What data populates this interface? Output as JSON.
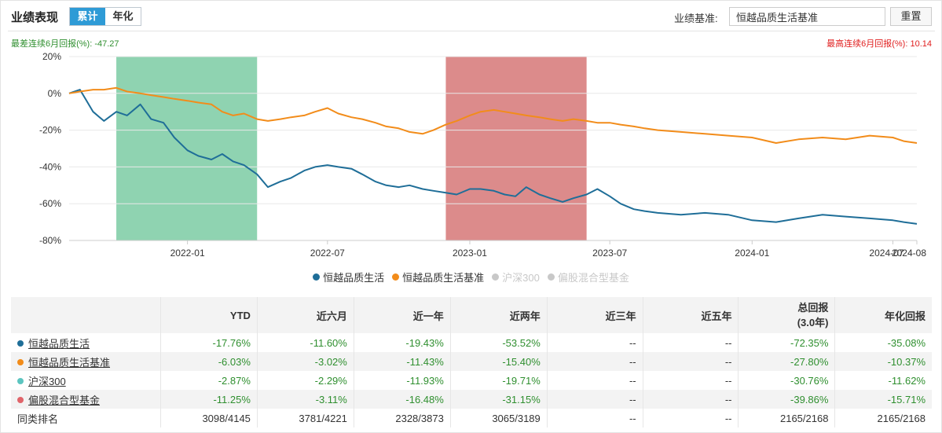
{
  "header": {
    "title": "业绩表现",
    "tabs": [
      {
        "label": "累计",
        "active": true
      },
      {
        "label": "年化",
        "active": false
      }
    ],
    "benchmark_label": "业绩基准:",
    "benchmark_value": "恒越品质生活基准",
    "reset_label": "重置"
  },
  "stats": {
    "worst_text": "最差连续6月回报(%): -47.27",
    "best_text": "最高连续6月回报(%): 10.14"
  },
  "colors": {
    "fund": "#1f6e98",
    "benchmark": "#f28c1a",
    "hs300": "#5cc5c0",
    "peer": "#e0646a",
    "worst_band": "#8fd3b1",
    "best_band": "#dc8b8b",
    "negative": "#2f8f2f",
    "positive": "#e02020"
  },
  "chart_data": {
    "type": "line",
    "x_axis": {
      "start": "2021-08",
      "end": "2024-08",
      "tick_labels": [
        "2022-01",
        "2022-07",
        "2023-01",
        "2023-07",
        "2024-01",
        "2024-07",
        "2024-08"
      ],
      "tick_dates": [
        "2022-01",
        "2022-07",
        "2023-01",
        "2023-07",
        "2024-01",
        "2024-07",
        "2024-08"
      ]
    },
    "y_axis": {
      "min": -80,
      "max": 20,
      "ticks": [
        20,
        0,
        -20,
        -40,
        -60,
        -80
      ],
      "tick_labels": [
        "20%",
        "0%",
        "-20%",
        "-40%",
        "-60%",
        "-80%"
      ]
    },
    "grid": true,
    "legend_position": "bottom",
    "bands": [
      {
        "kind": "worst-6-month",
        "start": "2021-10",
        "end": "2022-04",
        "color": "#8fd3b1"
      },
      {
        "kind": "best-6-month",
        "start": "2022-12",
        "end": "2023-06",
        "color": "#dc8b8b"
      }
    ],
    "series": [
      {
        "name": "恒越品质生活",
        "color": "#1f6e98",
        "visible": true,
        "x": [
          "2021-08",
          "2021-08-15",
          "2021-09",
          "2021-09-15",
          "2021-10",
          "2021-10-15",
          "2021-11",
          "2021-11-15",
          "2021-12",
          "2021-12-15",
          "2022-01",
          "2022-01-15",
          "2022-02",
          "2022-02-15",
          "2022-03",
          "2022-03-15",
          "2022-04",
          "2022-04-15",
          "2022-05",
          "2022-05-15",
          "2022-06",
          "2022-06-15",
          "2022-07",
          "2022-07-15",
          "2022-08",
          "2022-08-15",
          "2022-09",
          "2022-09-15",
          "2022-10",
          "2022-10-15",
          "2022-11",
          "2022-11-15",
          "2022-12",
          "2022-12-15",
          "2023-01",
          "2023-01-15",
          "2023-02",
          "2023-02-15",
          "2023-03",
          "2023-03-15",
          "2023-04",
          "2023-04-15",
          "2023-05",
          "2023-05-15",
          "2023-06",
          "2023-06-15",
          "2023-07",
          "2023-07-15",
          "2023-08",
          "2023-08-15",
          "2023-09",
          "2023-10",
          "2023-11",
          "2023-12",
          "2024-01",
          "2024-02",
          "2024-03",
          "2024-04",
          "2024-05",
          "2024-06",
          "2024-07",
          "2024-07-15",
          "2024-08"
        ],
        "values": [
          0,
          2,
          -10,
          -15,
          -10,
          -12,
          -6,
          -14,
          -16,
          -24,
          -31,
          -34,
          -36,
          -33,
          -37,
          -39,
          -44,
          -51,
          -48,
          -46,
          -42,
          -40,
          -39,
          -40,
          -41,
          -44,
          -48,
          -50,
          -51,
          -50,
          -52,
          -53,
          -54,
          -55,
          -52,
          -52,
          -53,
          -55,
          -56,
          -51,
          -55,
          -57,
          -59,
          -57,
          -55,
          -52,
          -56,
          -60,
          -63,
          -64,
          -65,
          -66,
          -65,
          -66,
          -69,
          -70,
          -68,
          -66,
          -67,
          -68,
          -69,
          -70,
          -71
        ]
      },
      {
        "name": "恒越品质生活基准",
        "color": "#f28c1a",
        "visible": true,
        "x": [
          "2021-08",
          "2021-08-15",
          "2021-09",
          "2021-09-15",
          "2021-10",
          "2021-10-15",
          "2021-11",
          "2021-11-15",
          "2021-12",
          "2021-12-15",
          "2022-01",
          "2022-01-15",
          "2022-02",
          "2022-02-15",
          "2022-03",
          "2022-03-15",
          "2022-04",
          "2022-04-15",
          "2022-05",
          "2022-05-15",
          "2022-06",
          "2022-06-15",
          "2022-07",
          "2022-07-15",
          "2022-08",
          "2022-08-15",
          "2022-09",
          "2022-09-15",
          "2022-10",
          "2022-10-15",
          "2022-11",
          "2022-11-15",
          "2022-12",
          "2022-12-15",
          "2023-01",
          "2023-01-15",
          "2023-02",
          "2023-02-15",
          "2023-03",
          "2023-03-15",
          "2023-04",
          "2023-04-15",
          "2023-05",
          "2023-05-15",
          "2023-06",
          "2023-06-15",
          "2023-07",
          "2023-07-15",
          "2023-08",
          "2023-08-15",
          "2023-09",
          "2023-10",
          "2023-11",
          "2023-12",
          "2024-01",
          "2024-02",
          "2024-03",
          "2024-04",
          "2024-05",
          "2024-06",
          "2024-07",
          "2024-07-15",
          "2024-08"
        ],
        "values": [
          0,
          1,
          2,
          2,
          3,
          1,
          0,
          -1,
          -2,
          -3,
          -4,
          -5,
          -6,
          -10,
          -12,
          -11,
          -14,
          -15,
          -14,
          -13,
          -12,
          -10,
          -8,
          -11,
          -13,
          -14,
          -16,
          -18,
          -19,
          -21,
          -22,
          -20,
          -17,
          -15,
          -12,
          -10,
          -9,
          -10,
          -11,
          -12,
          -13,
          -14,
          -15,
          -14,
          -15,
          -16,
          -16,
          -17,
          -18,
          -19,
          -20,
          -21,
          -22,
          -23,
          -24,
          -27,
          -25,
          -24,
          -25,
          -23,
          -24,
          -26,
          -27
        ]
      },
      {
        "name": "沪深300",
        "color": "#5cc5c0",
        "visible": false,
        "x": [],
        "values": []
      },
      {
        "name": "偏股混合型基金",
        "color": "#e0646a",
        "visible": false,
        "x": [],
        "values": []
      }
    ]
  },
  "legend": [
    {
      "label": "恒越品质生活",
      "color": "#1f6e98",
      "on": true
    },
    {
      "label": "恒越品质生活基准",
      "color": "#f28c1a",
      "on": true
    },
    {
      "label": "沪深300",
      "color": "#c8c8c8",
      "on": false
    },
    {
      "label": "偏股混合型基金",
      "color": "#c8c8c8",
      "on": false
    }
  ],
  "table": {
    "columns": [
      "",
      "YTD",
      "近六月",
      "近一年",
      "近两年",
      "近三年",
      "近五年",
      "总回报",
      "年化回报"
    ],
    "total_return_sub": "(3.0年)",
    "rows": [
      {
        "name": "恒越品质生活",
        "color": "#1f6e98",
        "values": [
          "-17.76%",
          "-11.60%",
          "-19.43%",
          "-53.52%",
          "--",
          "--",
          "-72.35%",
          "-35.08%"
        ]
      },
      {
        "name": "恒越品质生活基准",
        "color": "#f28c1a",
        "values": [
          "-6.03%",
          "-3.02%",
          "-11.43%",
          "-15.40%",
          "--",
          "--",
          "-27.80%",
          "-10.37%"
        ]
      },
      {
        "name": "沪深300",
        "color": "#5cc5c0",
        "values": [
          "-2.87%",
          "-2.29%",
          "-11.93%",
          "-19.71%",
          "--",
          "--",
          "-30.76%",
          "-11.62%"
        ]
      },
      {
        "name": "偏股混合型基金",
        "color": "#e0646a",
        "values": [
          "-11.25%",
          "-3.11%",
          "-16.48%",
          "-31.15%",
          "--",
          "--",
          "-39.86%",
          "-15.71%"
        ]
      },
      {
        "name": "同类排名",
        "color": "",
        "values": [
          "3098/4145",
          "3781/4221",
          "2328/3873",
          "3065/3189",
          "--",
          "--",
          "2165/2168",
          "2165/2168"
        ]
      }
    ]
  }
}
